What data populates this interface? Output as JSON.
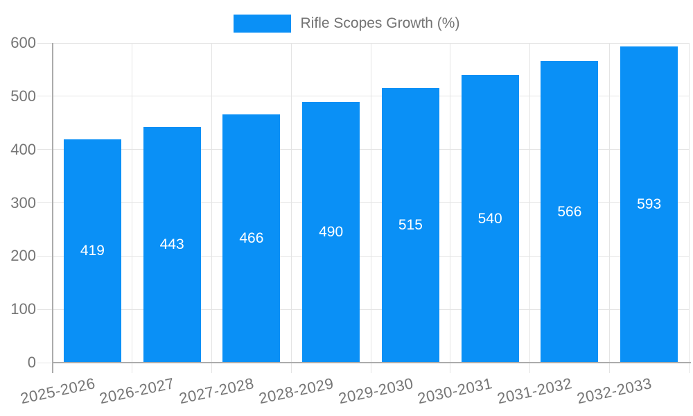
{
  "chart_data": {
    "type": "bar",
    "title": "",
    "legend": {
      "label": "Rifle Scopes Growth (%)",
      "position": "top"
    },
    "categories": [
      "2025-2026",
      "2026-2027",
      "2027-2028",
      "2028-2029",
      "2029-2030",
      "2030-2031",
      "2031-2032",
      "2032-2033"
    ],
    "series": [
      {
        "name": "Rifle Scopes Growth (%)",
        "values": [
          419,
          443,
          466,
          490,
          515,
          540,
          566,
          593
        ]
      }
    ],
    "xlabel": "",
    "ylabel": "",
    "ylim": [
      0,
      600
    ],
    "ytick_interval": 100,
    "yticks": [
      0,
      100,
      200,
      300,
      400,
      500,
      600
    ],
    "grid": true,
    "value_label_position": "inside-center",
    "xtick_rotation_deg": -12,
    "colors": {
      "bar": "#0a90f6",
      "grid": "#e4e4e4",
      "axis": "#ababab",
      "tick_text": "#757575",
      "legend_text": "#737373",
      "value_text": "#ffffff",
      "background": "#ffffff"
    }
  }
}
